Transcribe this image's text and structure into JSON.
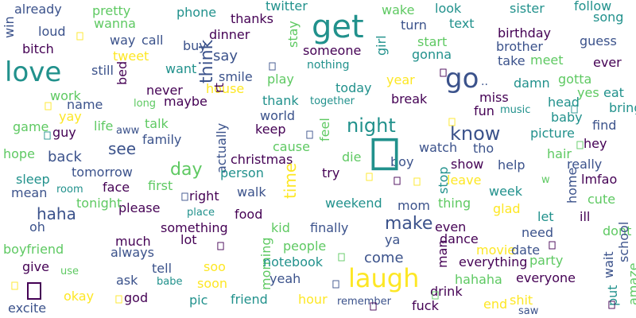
{
  "colors": {
    "background": "#ffffff",
    "palette": [
      "#440154",
      "#3b528b",
      "#21918c",
      "#5ec962",
      "#fde725"
    ]
  },
  "words": [
    {
      "text": "get",
      "color": "#21918c"
    },
    {
      "text": "love",
      "color": "#21918c"
    },
    {
      "text": "laugh",
      "color": "#fde725"
    },
    {
      "text": "go",
      "color": "#3b528b"
    },
    {
      "text": "night",
      "color": "#21918c"
    },
    {
      "text": "know",
      "color": "#3b528b"
    },
    {
      "text": "day",
      "color": "#5ec962"
    },
    {
      "text": "think",
      "color": "#3b528b"
    },
    {
      "text": "make",
      "color": "#3b528b"
    },
    {
      "text": "time",
      "color": "#fde725"
    },
    {
      "text": "haha",
      "color": "#3b528b"
    },
    {
      "text": "see",
      "color": "#3b528b"
    },
    {
      "text": "say",
      "color": "#3b528b"
    },
    {
      "text": "come",
      "color": "#3b528b"
    },
    {
      "text": "back",
      "color": "#3b528b"
    },
    {
      "text": "already",
      "color": "#3b528b"
    },
    {
      "text": "pretty",
      "color": "#5ec962"
    },
    {
      "text": "phone",
      "color": "#21918c"
    },
    {
      "text": "twitter",
      "color": "#21918c"
    },
    {
      "text": "thanks",
      "color": "#440154"
    },
    {
      "text": "wake",
      "color": "#5ec962"
    },
    {
      "text": "look",
      "color": "#21918c"
    },
    {
      "text": "sister",
      "color": "#21918c"
    },
    {
      "text": "follow",
      "color": "#21918c"
    },
    {
      "text": "song",
      "color": "#21918c"
    },
    {
      "text": "loud",
      "color": "#3b528b"
    },
    {
      "text": "wanna",
      "color": "#5ec962"
    },
    {
      "text": "turn",
      "color": "#3b528b"
    },
    {
      "text": "text",
      "color": "#21918c"
    },
    {
      "text": "birthday",
      "color": "#440154"
    },
    {
      "text": "win",
      "color": "#3b528b"
    },
    {
      "text": "way",
      "color": "#3b528b"
    },
    {
      "text": "call",
      "color": "#3b528b"
    },
    {
      "text": "dinner",
      "color": "#440154"
    },
    {
      "text": "start",
      "color": "#5ec962"
    },
    {
      "text": "guess",
      "color": "#3b528b"
    },
    {
      "text": "bitch",
      "color": "#440154"
    },
    {
      "text": "buy",
      "color": "#3b528b"
    },
    {
      "text": "someone",
      "color": "#440154"
    },
    {
      "text": "girl",
      "color": "#21918c"
    },
    {
      "text": "brother",
      "color": "#3b528b"
    },
    {
      "text": "tweet",
      "color": "#fde725"
    },
    {
      "text": "stay",
      "color": "#5ec962"
    },
    {
      "text": "gonna",
      "color": "#21918c"
    },
    {
      "text": "take",
      "color": "#3b528b"
    },
    {
      "text": "meet",
      "color": "#5ec962"
    },
    {
      "text": "ever",
      "color": "#440154"
    },
    {
      "text": "still",
      "color": "#3b528b"
    },
    {
      "text": "want",
      "color": "#21918c"
    },
    {
      "text": "nothing",
      "color": "#21918c"
    },
    {
      "text": "eat",
      "color": "#21918c"
    },
    {
      "text": "play",
      "color": "#5ec962"
    },
    {
      "text": "year",
      "color": "#fde725"
    },
    {
      "text": "gotta",
      "color": "#5ec962"
    },
    {
      "text": "damn",
      "color": "#21918c"
    },
    {
      "text": "smile",
      "color": "#3b528b"
    },
    {
      "text": "work",
      "color": "#5ec962"
    },
    {
      "text": "bed",
      "color": "#440154"
    },
    {
      "text": "never",
      "color": "#440154"
    },
    {
      "text": "house",
      "color": "#fde725"
    },
    {
      "text": "today",
      "color": "#21918c"
    },
    {
      "text": "yes",
      "color": "#5ec962"
    },
    {
      "text": "bring",
      "color": "#21918c"
    },
    {
      "text": "name",
      "color": "#3b528b"
    },
    {
      "text": "long",
      "color": "#5ec962"
    },
    {
      "text": "maybe",
      "color": "#440154"
    },
    {
      "text": "rt",
      "color": "#440154"
    },
    {
      "text": "thank",
      "color": "#21918c"
    },
    {
      "text": "together",
      "color": "#21918c"
    },
    {
      "text": "break",
      "color": "#440154"
    },
    {
      "text": "miss",
      "color": "#440154"
    },
    {
      "text": "head",
      "color": "#21918c"
    },
    {
      "text": "yay",
      "color": "#fde725"
    },
    {
      "text": "world",
      "color": "#3b528b"
    },
    {
      "text": "fun",
      "color": "#440154"
    },
    {
      "text": "music",
      "color": "#21918c"
    },
    {
      "text": "baby",
      "color": "#21918c"
    },
    {
      "text": "game",
      "color": "#5ec962"
    },
    {
      "text": "aww",
      "color": "#3b528b"
    },
    {
      "text": "life",
      "color": "#5ec962"
    },
    {
      "text": "talk",
      "color": "#5ec962"
    },
    {
      "text": "keep",
      "color": "#440154"
    },
    {
      "text": "feel",
      "color": "#5ec962"
    },
    {
      "text": "find",
      "color": "#3b528b"
    },
    {
      "text": "guy",
      "color": "#440154"
    },
    {
      "text": "family",
      "color": "#3b528b"
    },
    {
      "text": "picture",
      "color": "#21918c"
    },
    {
      "text": "hope",
      "color": "#5ec962"
    },
    {
      "text": "cause",
      "color": "#5ec962"
    },
    {
      "text": "watch",
      "color": "#3b528b"
    },
    {
      "text": "tho",
      "color": "#3b528b"
    },
    {
      "text": "hair",
      "color": "#5ec962"
    },
    {
      "text": "hey",
      "color": "#440154"
    },
    {
      "text": "actually",
      "color": "#3b528b"
    },
    {
      "text": "christmas",
      "color": "#440154"
    },
    {
      "text": "die",
      "color": "#5ec962"
    },
    {
      "text": "boy",
      "color": "#3b528b"
    },
    {
      "text": "show",
      "color": "#440154"
    },
    {
      "text": "help",
      "color": "#3b528b"
    },
    {
      "text": "really",
      "color": "#3b528b"
    },
    {
      "text": "sleep",
      "color": "#21918c"
    },
    {
      "text": "tomorrow",
      "color": "#3b528b"
    },
    {
      "text": "person",
      "color": "#21918c"
    },
    {
      "text": "stop",
      "color": "#21918c"
    },
    {
      "text": "try",
      "color": "#440154"
    },
    {
      "text": "face",
      "color": "#440154"
    },
    {
      "text": "first",
      "color": "#5ec962"
    },
    {
      "text": "leave",
      "color": "#fde725"
    },
    {
      "text": "home",
      "color": "#3b528b"
    },
    {
      "text": "lmfao",
      "color": "#440154"
    },
    {
      "text": "mean",
      "color": "#3b528b"
    },
    {
      "text": "room",
      "color": "#21918c"
    },
    {
      "text": "right",
      "color": "#440154"
    },
    {
      "text": "walk",
      "color": "#3b528b"
    },
    {
      "text": "week",
      "color": "#21918c"
    },
    {
      "text": "cute",
      "color": "#5ec962"
    },
    {
      "text": "weekend",
      "color": "#21918c"
    },
    {
      "text": "mom",
      "color": "#3b528b"
    },
    {
      "text": "thing",
      "color": "#5ec962"
    },
    {
      "text": "glad",
      "color": "#fde725"
    },
    {
      "text": "please",
      "color": "#440154"
    },
    {
      "text": "place",
      "color": "#21918c"
    },
    {
      "text": "food",
      "color": "#440154"
    },
    {
      "text": "let",
      "color": "#21918c"
    },
    {
      "text": "ill",
      "color": "#440154"
    },
    {
      "text": "oh",
      "color": "#3b528b"
    },
    {
      "text": "tonight",
      "color": "#5ec962"
    },
    {
      "text": "something",
      "color": "#440154"
    },
    {
      "text": "kid",
      "color": "#5ec962"
    },
    {
      "text": "finally",
      "color": "#3b528b"
    },
    {
      "text": "even",
      "color": "#440154"
    },
    {
      "text": "need",
      "color": "#3b528b"
    },
    {
      "text": "dont",
      "color": "#5ec962"
    },
    {
      "text": "school",
      "color": "#3b528b"
    },
    {
      "text": "boyfriend",
      "color": "#5ec962"
    },
    {
      "text": "much",
      "color": "#440154"
    },
    {
      "text": "lot",
      "color": "#440154"
    },
    {
      "text": "people",
      "color": "#5ec962"
    },
    {
      "text": "ya",
      "color": "#3b528b"
    },
    {
      "text": "dance",
      "color": "#440154"
    },
    {
      "text": "movie",
      "color": "#fde725"
    },
    {
      "text": "date",
      "color": "#3b528b"
    },
    {
      "text": "always",
      "color": "#3b528b"
    },
    {
      "text": "wait",
      "color": "#3b528b"
    },
    {
      "text": "give",
      "color": "#440154"
    },
    {
      "text": "use",
      "color": "#5ec962"
    },
    {
      "text": "tell",
      "color": "#3b528b"
    },
    {
      "text": "soo",
      "color": "#fde725"
    },
    {
      "text": "morning",
      "color": "#5ec962"
    },
    {
      "text": "notebook",
      "color": "#21918c"
    },
    {
      "text": "man",
      "color": "#440154"
    },
    {
      "text": "everything",
      "color": "#440154"
    },
    {
      "text": "party",
      "color": "#5ec962"
    },
    {
      "text": "amaze",
      "color": "#5ec962"
    },
    {
      "text": "ask",
      "color": "#3b528b"
    },
    {
      "text": "babe",
      "color": "#21918c"
    },
    {
      "text": "soon",
      "color": "#fde725"
    },
    {
      "text": "yeah",
      "color": "#3b528b"
    },
    {
      "text": "hahaha",
      "color": "#5ec962"
    },
    {
      "text": "everyone",
      "color": "#440154"
    },
    {
      "text": "put",
      "color": "#21918c"
    },
    {
      "text": "okay",
      "color": "#fde725"
    },
    {
      "text": "god",
      "color": "#440154"
    },
    {
      "text": "pic",
      "color": "#21918c"
    },
    {
      "text": "friend",
      "color": "#21918c"
    },
    {
      "text": "hour",
      "color": "#fde725"
    },
    {
      "text": "remember",
      "color": "#3b528b"
    },
    {
      "text": "drink",
      "color": "#440154"
    },
    {
      "text": "fuck",
      "color": "#440154"
    },
    {
      "text": "end",
      "color": "#fde725"
    },
    {
      "text": "shit",
      "color": "#fde725"
    },
    {
      "text": "saw",
      "color": "#3b528b"
    },
    {
      "text": "excite",
      "color": "#3b528b"
    },
    {
      "text": "··",
      "color": "#3b528b"
    },
    {
      "text": "w",
      "color": "#5ec962"
    }
  ],
  "glyphs": [
    {
      "name": "boxed-glyph",
      "color": "#21918c"
    },
    {
      "name": "boxed-glyph",
      "color": "#440154"
    },
    {
      "name": "boxed-glyph",
      "color": "#fde725"
    },
    {
      "name": "boxed-glyph",
      "color": "#3b528b"
    },
    {
      "name": "boxed-glyph",
      "color": "#440154"
    },
    {
      "name": "boxed-glyph",
      "color": "#fde725"
    },
    {
      "name": "boxed-glyph",
      "color": "#21918c"
    },
    {
      "name": "boxed-glyph",
      "color": "#fde725"
    },
    {
      "name": "boxed-glyph",
      "color": "#21918c"
    },
    {
      "name": "boxed-glyph",
      "color": "#3b528b"
    },
    {
      "name": "boxed-glyph",
      "color": "#5ec962"
    },
    {
      "name": "boxed-glyph",
      "color": "#fde725"
    },
    {
      "name": "boxed-glyph",
      "color": "#440154"
    },
    {
      "name": "boxed-glyph",
      "color": "#3b528b"
    },
    {
      "name": "boxed-glyph",
      "color": "#fde725"
    },
    {
      "name": "boxed-glyph",
      "color": "#440154"
    },
    {
      "name": "boxed-glyph",
      "color": "#5ec962"
    },
    {
      "name": "boxed-glyph",
      "color": "#440154"
    },
    {
      "name": "boxed-glyph",
      "color": "#fde725"
    },
    {
      "name": "boxed-glyph",
      "color": "#3b528b"
    },
    {
      "name": "boxed-glyph",
      "color": "#5ec962"
    },
    {
      "name": "boxed-glyph",
      "color": "#440154"
    },
    {
      "name": "boxed-glyph",
      "color": "#440154"
    },
    {
      "name": "boxed-glyph",
      "color": "#fde725"
    }
  ]
}
